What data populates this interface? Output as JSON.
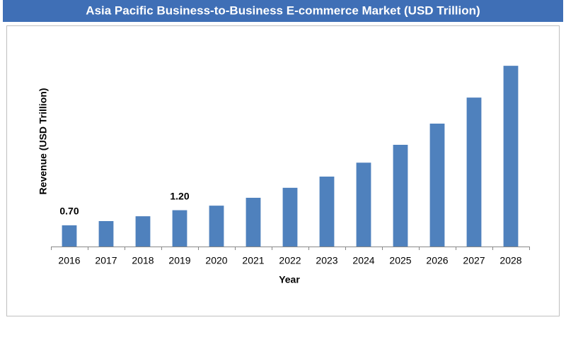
{
  "chart_data": {
    "type": "bar",
    "title": "Asia Pacific Business-to-Business E-commerce Market (USD Trillion)",
    "x_label": "Year",
    "y_label": "Revenue (USD Trillion)",
    "categories": [
      "2016",
      "2017",
      "2018",
      "2019",
      "2020",
      "2021",
      "2022",
      "2023",
      "2024",
      "2025",
      "2026",
      "2027",
      "2028"
    ],
    "values": [
      0.7,
      0.84,
      1.0,
      1.2,
      1.35,
      1.61,
      1.94,
      2.31,
      2.77,
      3.36,
      4.06,
      4.92,
      5.97
    ],
    "value_labels": [
      "0.70",
      null,
      null,
      "1.20",
      null,
      null,
      null,
      null,
      null,
      null,
      null,
      null,
      null
    ],
    "color": "#4f81bd",
    "ylim": [
      0,
      7
    ]
  }
}
